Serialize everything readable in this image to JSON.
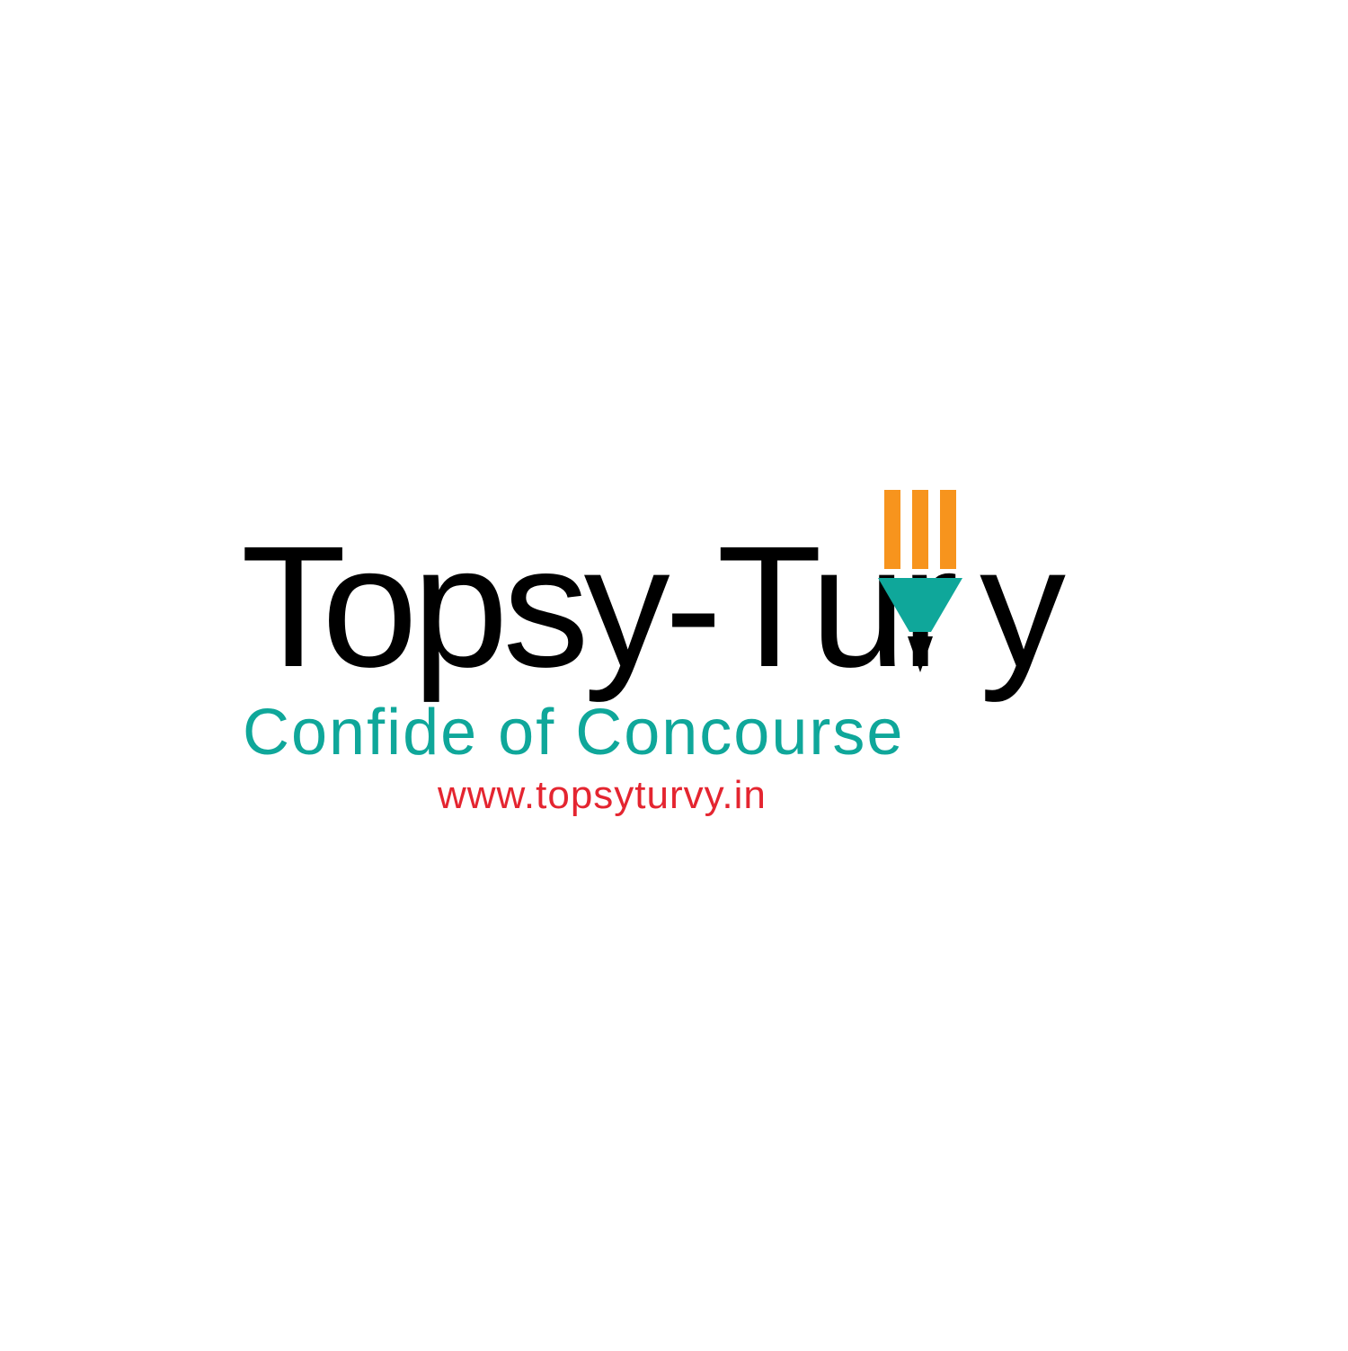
{
  "logo": {
    "brand_main": "Topsy-Tur",
    "brand_end": "y",
    "tagline": "Confide of Concourse",
    "website": "www.topsyturvy.in",
    "pencil_icon": "pencil-icon"
  },
  "colors": {
    "brand_text": "#000000",
    "tagline": "#0fa79a",
    "website": "#e42530",
    "pencil_body": "#f7941d",
    "pencil_cone": "#0fa79a",
    "pencil_tip": "#000000"
  }
}
